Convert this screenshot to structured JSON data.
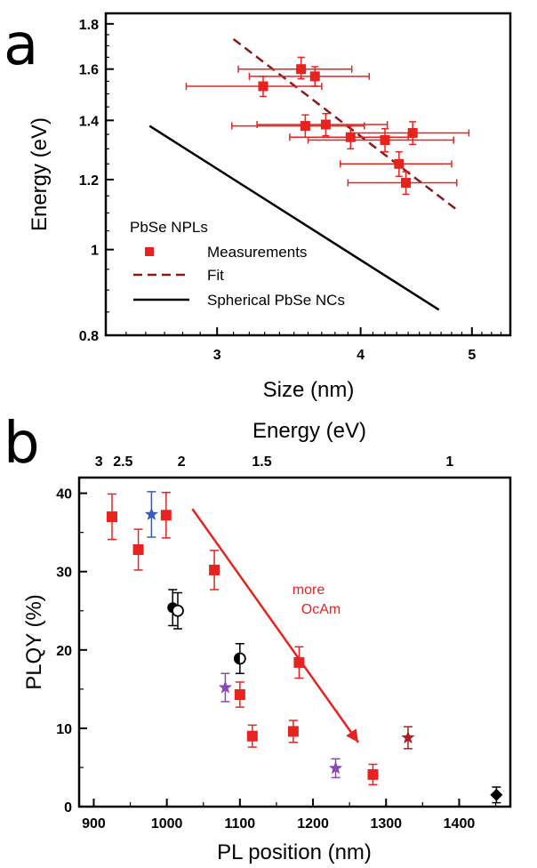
{
  "panels": {
    "a": {
      "letter": "a"
    },
    "b": {
      "letter": "b"
    }
  },
  "colors": {
    "measurement": "#e8231f",
    "fit": "#8b1a1a",
    "spherical": "#000000",
    "blue_star": "#3a5ab8",
    "purple_star": "#8a48b6",
    "darkred_star": "#b01e24",
    "arrow": "#e8231f",
    "black_marker": "#000000"
  },
  "chart_data": [
    {
      "id": "a",
      "type": "scatter",
      "title": "",
      "xlabel": "Size (nm)",
      "ylabel": "Energy (eV)",
      "xscale": "log",
      "yscale": "log",
      "xlim": [
        2.4,
        5.4
      ],
      "ylim": [
        0.8,
        1.85
      ],
      "xticks": [
        3,
        4,
        5
      ],
      "yticks": [
        0.8,
        1,
        1.2,
        1.4,
        1.6,
        1.8
      ],
      "xtick_labels": [
        "3",
        "4",
        "5"
      ],
      "ytick_labels": [
        "0.8",
        "1",
        "1.2",
        "1.4",
        "1.6",
        "1.8"
      ],
      "legend": {
        "position": "lower-left",
        "title": "PbSe NPLs",
        "entries": [
          {
            "label": "Measurements",
            "marker": "square",
            "series": "measurements"
          },
          {
            "label": "Fit",
            "marker": "dashed-line",
            "series": "fit"
          },
          {
            "label": "Spherical PbSe NCs",
            "marker": "solid-line",
            "series": "spherical"
          }
        ]
      },
      "series": [
        {
          "name": "Measurements",
          "key": "measurements",
          "marker": "square",
          "points": [
            {
              "x": 3.55,
              "y": 1.6,
              "xerr_lo": 3.13,
              "xerr_hi": 3.93,
              "yerr_lo": 1.56,
              "yerr_hi": 1.65
            },
            {
              "x": 3.65,
              "y": 1.57,
              "xerr_lo": 3.2,
              "xerr_hi": 4.07,
              "yerr_lo": 1.53,
              "yerr_hi": 1.61
            },
            {
              "x": 3.29,
              "y": 1.53,
              "xerr_lo": 2.82,
              "xerr_hi": 3.7,
              "yerr_lo": 1.49,
              "yerr_hi": 1.57
            },
            {
              "x": 3.58,
              "y": 1.38,
              "xerr_lo": 3.09,
              "xerr_hi": 4.03,
              "yerr_lo": 1.34,
              "yerr_hi": 1.42
            },
            {
              "x": 3.73,
              "y": 1.385,
              "xerr_lo": 3.25,
              "xerr_hi": 4.22,
              "yerr_lo": 1.345,
              "yerr_hi": 1.425
            },
            {
              "x": 3.92,
              "y": 1.34,
              "xerr_lo": 3.47,
              "xerr_hi": 4.4,
              "yerr_lo": 1.3,
              "yerr_hi": 1.38
            },
            {
              "x": 4.2,
              "y": 1.33,
              "xerr_lo": 3.6,
              "xerr_hi": 4.82,
              "yerr_lo": 1.29,
              "yerr_hi": 1.37
            },
            {
              "x": 4.44,
              "y": 1.355,
              "xerr_lo": 3.92,
              "xerr_hi": 4.97,
              "yerr_lo": 1.315,
              "yerr_hi": 1.395
            },
            {
              "x": 4.32,
              "y": 1.25,
              "xerr_lo": 3.84,
              "xerr_hi": 4.8,
              "yerr_lo": 1.21,
              "yerr_hi": 1.29
            },
            {
              "x": 4.38,
              "y": 1.19,
              "xerr_lo": 3.9,
              "xerr_hi": 4.85,
              "yerr_lo": 1.155,
              "yerr_hi": 1.225
            }
          ]
        },
        {
          "name": "Fit",
          "key": "fit",
          "style": "dashed",
          "x": [
            3.1,
            4.87
          ],
          "y": [
            1.73,
            1.105
          ]
        },
        {
          "name": "Spherical PbSe NCs",
          "key": "spherical",
          "style": "solid",
          "x": [
            2.62,
            4.68
          ],
          "y": [
            1.38,
            0.855
          ]
        }
      ]
    },
    {
      "id": "b",
      "type": "scatter",
      "title": "",
      "xlabel": "PL position (nm)",
      "ylabel": "PLQY (%)",
      "top_xlabel": "Energy (eV)",
      "xlim": [
        880,
        1470
      ],
      "ylim": [
        0,
        42
      ],
      "xticks": [
        900,
        1000,
        1100,
        1200,
        1300,
        1400
      ],
      "yticks": [
        0,
        10,
        20,
        30,
        40
      ],
      "xtick_labels": [
        "900",
        "1000",
        "1100",
        "1200",
        "1300",
        "1400"
      ],
      "ytick_labels": [
        "0",
        "10",
        "20",
        "30",
        "40"
      ],
      "top_ticks": [
        {
          "label": "3",
          "nm": 907
        },
        {
          "label": "2.5",
          "nm": 940
        },
        {
          "label": "2",
          "nm": 1020
        },
        {
          "label": "1.5",
          "nm": 1130
        },
        {
          "label": "1",
          "nm": 1387
        }
      ],
      "annotation": {
        "lines": [
          "more",
          "OcAm"
        ],
        "x": 1185,
        "y": 34
      },
      "arrow": {
        "x1": 1035,
        "y1": 38,
        "x2": 1262,
        "y2": 8.2
      },
      "series": [
        {
          "key": "red_squares",
          "marker": "square",
          "color_key": "measurement",
          "points": [
            {
              "x": 925,
              "y": 37,
              "err": 2.9
            },
            {
              "x": 961,
              "y": 32.8,
              "err": 2.6
            },
            {
              "x": 999,
              "y": 37.2,
              "err": 2.9
            },
            {
              "x": 1065,
              "y": 30.2,
              "err": 2.5
            },
            {
              "x": 1100,
              "y": 14.3,
              "err": 1.6
            },
            {
              "x": 1117,
              "y": 9.0,
              "err": 1.4
            },
            {
              "x": 1173,
              "y": 9.6,
              "err": 1.4
            },
            {
              "x": 1181,
              "y": 18.4,
              "err": 2.0
            },
            {
              "x": 1282,
              "y": 4.1,
              "err": 1.3
            }
          ]
        },
        {
          "key": "stars",
          "marker": "star",
          "points": [
            {
              "x": 979,
              "y": 37.3,
              "err": 2.9,
              "color_key": "blue_star"
            },
            {
              "x": 1080,
              "y": 15.2,
              "err": 1.8,
              "color_key": "purple_star"
            },
            {
              "x": 1231,
              "y": 4.9,
              "err": 1.2,
              "color_key": "purple_star"
            },
            {
              "x": 1330,
              "y": 8.8,
              "err": 1.4,
              "color_key": "darkred_star"
            }
          ]
        },
        {
          "key": "circles",
          "marker": "circle",
          "points": [
            {
              "x": 1008,
              "y": 25.4,
              "err": 2.3,
              "fill": "full"
            },
            {
              "x": 1015,
              "y": 25.0,
              "err": 2.3,
              "fill": "open"
            },
            {
              "x": 1100,
              "y": 18.9,
              "err": 1.9,
              "fill": "half"
            }
          ]
        },
        {
          "key": "diamond",
          "marker": "diamond",
          "points": [
            {
              "x": 1451,
              "y": 1.5,
              "err": 1.0
            }
          ]
        }
      ]
    }
  ]
}
